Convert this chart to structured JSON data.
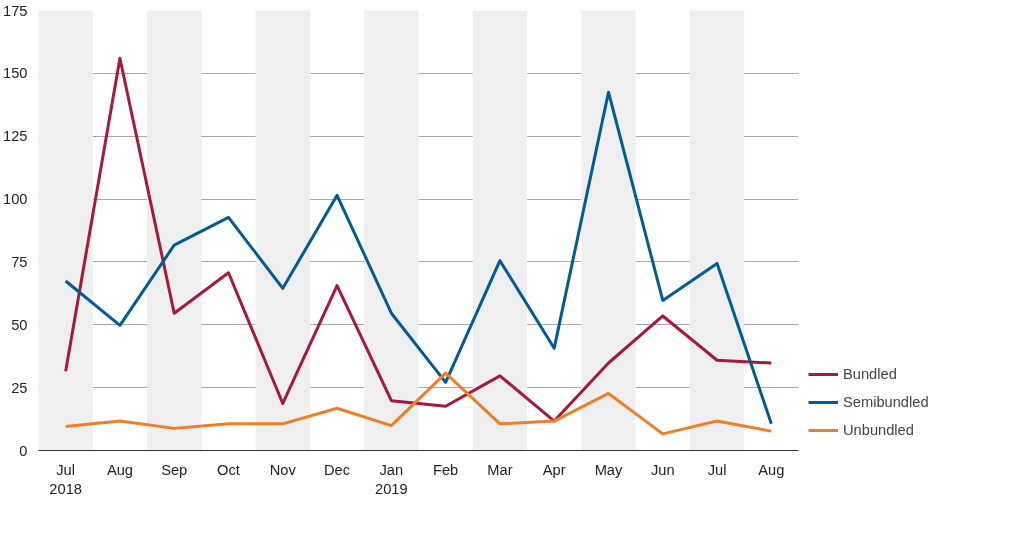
{
  "chart_data": {
    "type": "line",
    "categories": [
      "Jul\n2018",
      "Aug",
      "Sep",
      "Oct",
      "Nov",
      "Dec",
      "Jan\n2019",
      "Feb",
      "Mar",
      "Apr",
      "May",
      "Jun",
      "Jul",
      "Aug"
    ],
    "series": [
      {
        "name": "Bundled",
        "color": "#a6193a",
        "values": [
          31.5,
          156,
          54.6,
          70.7,
          18.7,
          65.6,
          19.8,
          17.6,
          29.7,
          11.7,
          34.8,
          53.5,
          35.9,
          34.8
        ]
      },
      {
        "name": "Semibundled",
        "color": "#005b96",
        "values": [
          67.4,
          49.8,
          81.7,
          92.7,
          64.5,
          101.5,
          54.6,
          27.1,
          75.5,
          40.7,
          142.5,
          59.7,
          74.4,
          10.6
        ]
      },
      {
        "name": "Unbundled",
        "color": "#f07e26",
        "values": [
          9.5,
          11.7,
          8.8,
          10.6,
          10.6,
          16.8,
          9.9,
          30.8,
          10.6,
          11.7,
          22.7,
          6.6,
          11.7,
          7.7
        ]
      }
    ],
    "ylim": [
      0,
      175
    ],
    "yticks": [
      0,
      25,
      50,
      75,
      100,
      125,
      150,
      175
    ],
    "grid": "y",
    "legend": "right",
    "marker": "none",
    "line_style": "solid"
  }
}
